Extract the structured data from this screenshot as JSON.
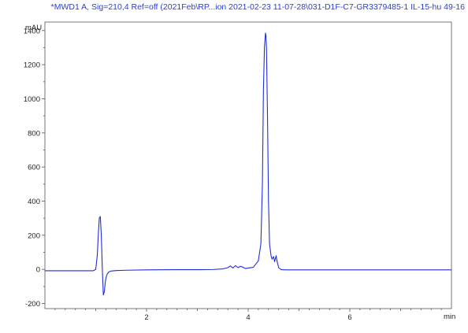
{
  "header": {
    "title": "*MWD1 A, Sig=210,4 Ref=off (2021Feb\\RP...ion 2021-02-23 11-07-28\\031-D1F-C7-GR3379485-1 IL-15-hu 49-16"
  },
  "chart_data": {
    "type": "line",
    "title": "*MWD1 A, Sig=210,4 Ref=off (2021Feb\\RP...ion 2021-02-23 11-07-28\\031-D1F-C7-GR3379485-1 IL-15-hu 49-16",
    "xlabel": "min",
    "ylabel": "mAU",
    "xlim": [
      0,
      8.0
    ],
    "ylim": [
      -230,
      1450
    ],
    "x_ticks": [
      2,
      4,
      6
    ],
    "x_tick_labels": [
      "2",
      "4",
      "6"
    ],
    "y_ticks": [
      -200,
      0,
      200,
      400,
      600,
      800,
      1000,
      1200,
      1400
    ],
    "y_tick_labels": [
      "-200",
      "0",
      "200",
      "400",
      "600",
      "800",
      "1000",
      "1200",
      "1400"
    ],
    "grid": false,
    "line_color": "#1f2fd6",
    "series": [
      {
        "x": [
          0.0,
          0.5,
          0.95,
          1.0,
          1.03,
          1.05,
          1.07,
          1.09,
          1.11,
          1.13,
          1.15,
          1.17,
          1.19,
          1.21,
          1.23,
          1.26,
          1.3,
          1.4,
          1.6,
          2.0,
          2.5,
          3.0,
          3.3,
          3.5,
          3.6,
          3.65,
          3.7,
          3.75,
          3.8,
          3.85,
          3.9,
          3.95,
          4.0,
          4.1,
          4.2,
          4.25,
          4.28,
          4.3,
          4.32,
          4.34,
          4.35,
          4.36,
          4.38,
          4.4,
          4.42,
          4.45,
          4.47,
          4.5,
          4.52,
          4.55,
          4.57,
          4.6,
          4.65,
          4.75,
          5.0,
          6.0,
          7.0,
          8.0
        ],
        "y": [
          -8,
          -8,
          -8,
          0,
          80,
          200,
          300,
          310,
          200,
          0,
          -150,
          -130,
          -70,
          -40,
          -25,
          -15,
          -10,
          -7,
          -5,
          -3,
          -2,
          -2,
          -1,
          3,
          10,
          20,
          8,
          22,
          10,
          18,
          12,
          5,
          8,
          12,
          50,
          150,
          500,
          1050,
          1300,
          1385,
          1370,
          1300,
          900,
          400,
          150,
          80,
          60,
          75,
          45,
          80,
          45,
          10,
          -2,
          -3,
          -3,
          -3,
          -3,
          -3
        ]
      }
    ]
  }
}
